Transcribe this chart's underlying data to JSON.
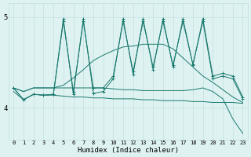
{
  "xlabel": "Humidex (Indice chaleur)",
  "x_values": [
    0,
    1,
    2,
    3,
    4,
    5,
    6,
    7,
    8,
    9,
    10,
    11,
    12,
    13,
    14,
    15,
    16,
    17,
    18,
    19,
    20,
    21,
    22,
    23
  ],
  "bg_color": "#dff2f2",
  "line_color": "#1a7a6e",
  "grid_color": "#c0dede",
  "ylim": [
    3.65,
    5.15
  ],
  "yticks": [
    4,
    5
  ],
  "figsize": [
    3.2,
    2.0
  ],
  "dpi": 100,
  "line_lw": 0.7,
  "marker_size": 2.5,
  "series": {
    "zz1": [
      4.22,
      4.09,
      4.15,
      4.14,
      4.15,
      4.98,
      4.15,
      4.98,
      4.16,
      4.18,
      4.32,
      4.98,
      4.37,
      4.98,
      4.42,
      4.98,
      4.45,
      4.98,
      4.47,
      4.98,
      4.35,
      4.38,
      4.35,
      4.12
    ],
    "zz2": [
      4.22,
      4.09,
      4.15,
      4.14,
      4.15,
      4.95,
      4.18,
      4.95,
      4.22,
      4.22,
      4.35,
      4.95,
      4.4,
      4.95,
      4.45,
      4.95,
      4.47,
      4.95,
      4.48,
      4.95,
      4.32,
      4.35,
      4.32,
      4.1
    ],
    "smooth": [
      4.22,
      4.18,
      4.22,
      4.22,
      4.22,
      4.25,
      4.33,
      4.42,
      4.52,
      4.58,
      4.63,
      4.67,
      4.68,
      4.7,
      4.7,
      4.7,
      4.65,
      4.55,
      4.45,
      4.35,
      4.28,
      4.2,
      4.12,
      4.06
    ],
    "flat1": [
      4.18,
      4.09,
      4.15,
      4.14,
      4.14,
      4.13,
      4.12,
      4.12,
      4.11,
      4.11,
      4.1,
      4.1,
      4.1,
      4.09,
      4.09,
      4.08,
      4.08,
      4.08,
      4.07,
      4.07,
      4.06,
      4.06,
      4.06,
      4.05
    ],
    "drop": [
      4.22,
      4.18,
      4.22,
      4.22,
      4.22,
      4.22,
      4.22,
      4.22,
      4.22,
      4.22,
      4.21,
      4.2,
      4.2,
      4.19,
      4.19,
      4.19,
      4.19,
      4.19,
      4.2,
      4.22,
      4.18,
      4.1,
      3.88,
      3.72
    ]
  },
  "markers": {
    "zz1": [
      0,
      1,
      2,
      3,
      4,
      5,
      6,
      7,
      8,
      9,
      10,
      11,
      12,
      13,
      14,
      15,
      16,
      17,
      18,
      19,
      20,
      21,
      22,
      23
    ],
    "zz2": [
      0,
      1,
      2,
      3,
      4,
      5,
      6,
      7,
      8,
      9,
      10,
      11,
      12,
      13,
      14,
      15,
      16,
      17,
      18,
      19,
      20,
      21,
      22,
      23
    ]
  }
}
